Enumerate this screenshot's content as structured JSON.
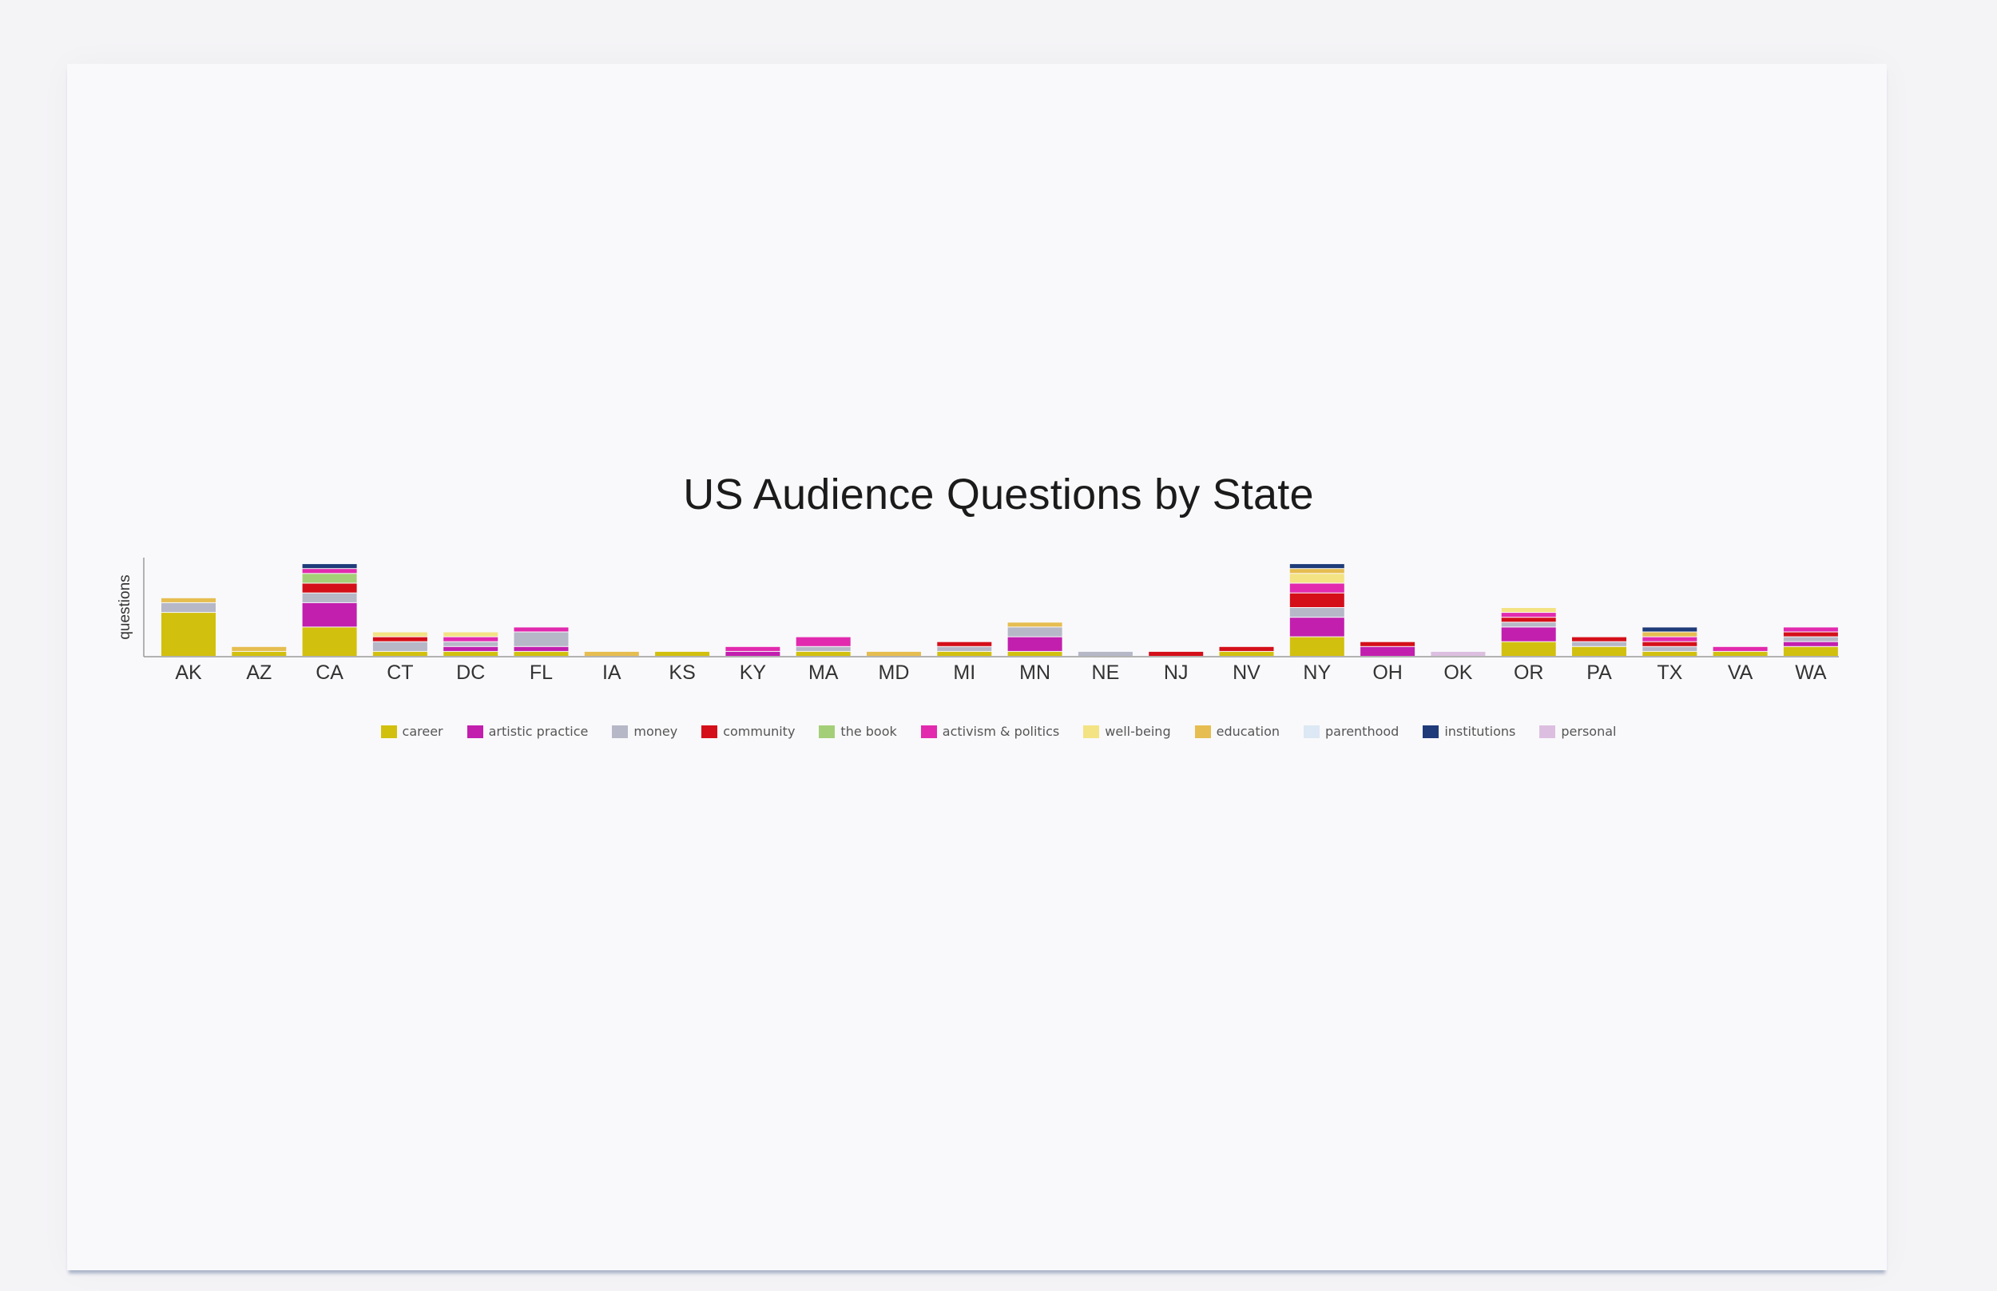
{
  "chart_data": {
    "type": "bar",
    "stacked": true,
    "title": "US Audience Questions by State",
    "xlabel": "",
    "ylabel": "questions",
    "ylim": [
      0,
      20
    ],
    "legend_position": "bottom",
    "categories": [
      "AK",
      "AZ",
      "CA",
      "CT",
      "DC",
      "FL",
      "IA",
      "KS",
      "KY",
      "MA",
      "MD",
      "MI",
      "MN",
      "NE",
      "NJ",
      "NV",
      "NY",
      "OH",
      "OK",
      "OR",
      "PA",
      "TX",
      "VA",
      "WA"
    ],
    "series": [
      {
        "name": "career",
        "color": "#d2c00e",
        "values": [
          9,
          1,
          6,
          1,
          1,
          1,
          0,
          1,
          0,
          1,
          0,
          1,
          1,
          0,
          0,
          1,
          4,
          0,
          0,
          3,
          2,
          1,
          1,
          2
        ]
      },
      {
        "name": "artistic practice",
        "color": "#c21fae",
        "values": [
          0,
          0,
          5,
          0,
          1,
          1,
          0,
          0,
          1,
          0,
          0,
          0,
          3,
          0,
          0,
          0,
          4,
          2,
          0,
          3,
          0,
          0,
          0,
          1
        ]
      },
      {
        "name": "money",
        "color": "#b6b8c8",
        "values": [
          2,
          0,
          2,
          2,
          1,
          3,
          0,
          0,
          0,
          1,
          0,
          1,
          2,
          1,
          0,
          0,
          2,
          0,
          0,
          1,
          1,
          1,
          0,
          1
        ]
      },
      {
        "name": "community",
        "color": "#d40f1a",
        "values": [
          0,
          0,
          2,
          1,
          0,
          0,
          0,
          0,
          0,
          0,
          0,
          1,
          0,
          0,
          1,
          1,
          3,
          1,
          0,
          1,
          1,
          1,
          0,
          1
        ]
      },
      {
        "name": "the book",
        "color": "#a4cf78",
        "values": [
          0,
          0,
          2,
          0,
          0,
          0,
          0,
          0,
          0,
          0,
          0,
          0,
          0,
          0,
          0,
          0,
          0,
          0,
          0,
          0,
          0,
          0,
          0,
          0
        ]
      },
      {
        "name": "activism & politics",
        "color": "#e22aae",
        "values": [
          0,
          0,
          1,
          0,
          1,
          1,
          0,
          0,
          1,
          2,
          0,
          0,
          0,
          0,
          0,
          0,
          2,
          0,
          0,
          1,
          0,
          1,
          1,
          1
        ]
      },
      {
        "name": "well-being",
        "color": "#f3e383",
        "values": [
          0,
          0,
          0,
          1,
          1,
          0,
          0,
          0,
          0,
          0,
          0,
          0,
          0,
          0,
          0,
          0,
          2,
          0,
          0,
          1,
          0,
          0,
          0,
          0
        ]
      },
      {
        "name": "education",
        "color": "#e6bd50",
        "values": [
          1,
          1,
          0,
          0,
          0,
          0,
          1,
          0,
          0,
          0,
          1,
          0,
          1,
          0,
          0,
          0,
          1,
          0,
          0,
          0,
          0,
          1,
          0,
          0
        ]
      },
      {
        "name": "parenthood",
        "color": "#dce8f3",
        "values": [
          0,
          0,
          0,
          0,
          0,
          0,
          0,
          0,
          0,
          0,
          0,
          0,
          0,
          0,
          0,
          0,
          0,
          0,
          0,
          0,
          0,
          0,
          0,
          0
        ]
      },
      {
        "name": "institutions",
        "color": "#1f3b79",
        "values": [
          0,
          0,
          1,
          0,
          0,
          0,
          0,
          0,
          0,
          0,
          0,
          0,
          0,
          0,
          0,
          0,
          1,
          0,
          0,
          0,
          0,
          1,
          0,
          0
        ]
      },
      {
        "name": "personal",
        "color": "#dcbfe0",
        "values": [
          0,
          0,
          0,
          0,
          0,
          0,
          0,
          0,
          0,
          0,
          0,
          0,
          0,
          0,
          0,
          0,
          0,
          0,
          1,
          0,
          0,
          0,
          0,
          0
        ]
      }
    ]
  }
}
